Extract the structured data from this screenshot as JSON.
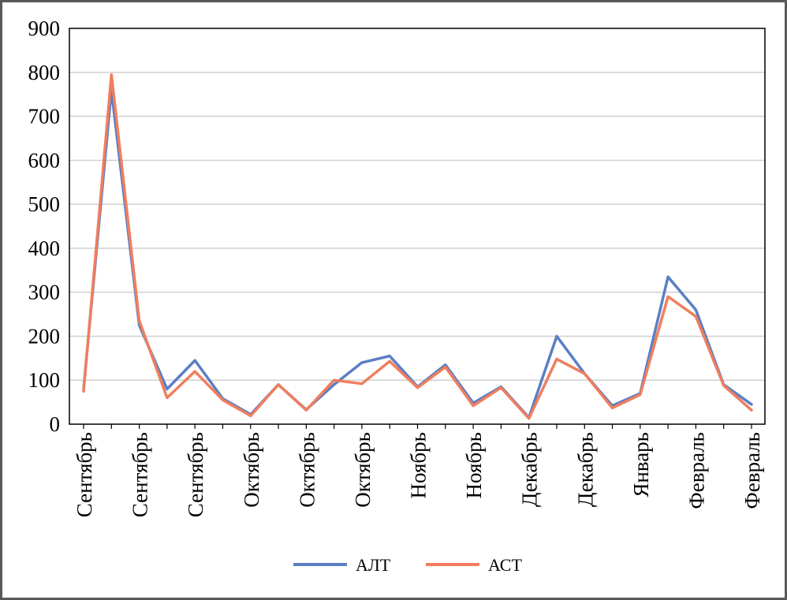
{
  "chart_data": {
    "type": "line",
    "categories": [
      "Сентябрь",
      "",
      "Сентябрь",
      "",
      "Сентябрь",
      "",
      "Октябрь",
      "",
      "Октябрь",
      "",
      "Октябрь",
      "",
      "Ноябрь",
      "",
      "Ноябрь",
      "",
      "Декабрь",
      "",
      "Декабрь",
      "",
      "Январь",
      "",
      "Февраль",
      "",
      "Февраль"
    ],
    "series": [
      {
        "name": "АЛТ",
        "color": "#5B7FC4",
        "values": [
          80,
          760,
          225,
          80,
          145,
          58,
          22,
          90,
          33,
          90,
          140,
          155,
          85,
          135,
          48,
          85,
          15,
          200,
          115,
          42,
          70,
          335,
          260,
          90,
          45
        ]
      },
      {
        "name": "АСТ",
        "color": "#F07E5E",
        "values": [
          75,
          795,
          235,
          60,
          120,
          55,
          19,
          90,
          32,
          100,
          92,
          143,
          83,
          130,
          42,
          83,
          13,
          148,
          115,
          37,
          67,
          290,
          245,
          88,
          32
        ]
      }
    ],
    "yticks": [
      "0",
      "100",
      "200",
      "300",
      "400",
      "500",
      "600",
      "700",
      "800",
      "900"
    ],
    "ylim": [
      0,
      900
    ],
    "grid": true,
    "legend": "bottom"
  }
}
